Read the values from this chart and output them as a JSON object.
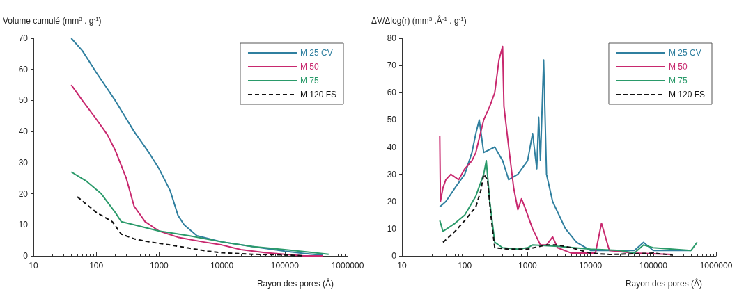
{
  "chart_data": [
    {
      "type": "line",
      "ylabel": "Volume cumulé (mm$^{3}$ . g$^{-1}$)",
      "xlabel": "Rayon des pores (Å)",
      "log": "x",
      "xlim": [
        10,
        1000000
      ],
      "xticks": [
        10,
        100,
        1000,
        10000,
        100000,
        1000000
      ],
      "ylim": [
        0,
        70
      ],
      "yticks": [
        0,
        10,
        20,
        30,
        40,
        50,
        60,
        70
      ],
      "grid": false,
      "legend": "top right",
      "marker": "none",
      "series": [
        {
          "name": "M 25 CV",
          "color": "#2f7f9f",
          "line_style": "solid",
          "x": [
            40,
            60,
            100,
            200,
            400,
            700,
            1000,
            1500,
            2000,
            2500,
            4000,
            10000,
            30000,
            100000,
            200000,
            400000
          ],
          "values": [
            70,
            66,
            59,
            50,
            40,
            33,
            28,
            21,
            13,
            10,
            6.5,
            4.5,
            3,
            1.5,
            0.8,
            0.2
          ]
        },
        {
          "name": "M 50",
          "color": "#c8286e",
          "line_style": "solid",
          "x": [
            40,
            60,
            100,
            150,
            200,
            300,
            400,
            600,
            1000,
            2000,
            5000,
            10000,
            20000,
            50000,
            100000,
            200000,
            400000
          ],
          "values": [
            55,
            50,
            44,
            39,
            34,
            25,
            16,
            11,
            8,
            6,
            4.5,
            3.5,
            2,
            1,
            0.5,
            0,
            0
          ]
        },
        {
          "name": "M 75",
          "color": "#2a9a6a",
          "line_style": "solid",
          "x": [
            40,
            70,
            120,
            200,
            250,
            400,
            1000,
            3000,
            10000,
            30000,
            100000,
            300000,
            500000
          ],
          "values": [
            27,
            24,
            20,
            14,
            11,
            10,
            8,
            6.5,
            4.5,
            3,
            2,
            1,
            0.5
          ]
        },
        {
          "name": "M 120 FS",
          "color": "#111111",
          "line_style": "dashed",
          "x": [
            50,
            100,
            180,
            250,
            400,
            700,
            1500,
            3000,
            6000,
            10000,
            30000,
            100000,
            200000
          ],
          "values": [
            19,
            14,
            11,
            7,
            5.5,
            4.5,
            3.5,
            2.5,
            1.5,
            1,
            0.5,
            0.3,
            0
          ]
        }
      ]
    },
    {
      "type": "line",
      "ylabel": "ΔV/Δlog(r) (mm$^{3}$ .Å$^{-1}$ . g$^{-1}$)",
      "xlabel": "Rayon des pores (Å)",
      "log": "x",
      "xlim": [
        10,
        1000000
      ],
      "xticks": [
        10,
        100,
        1000,
        10000,
        100000,
        1000000
      ],
      "ylim": [
        0,
        80
      ],
      "yticks": [
        0,
        10,
        20,
        30,
        40,
        50,
        60,
        70,
        80
      ],
      "grid": false,
      "legend": "top right",
      "marker": "none",
      "series": [
        {
          "name": "M 25 CV",
          "color": "#2f7f9f",
          "line_style": "solid",
          "x": [
            40,
            50,
            70,
            100,
            130,
            150,
            170,
            200,
            300,
            400,
            500,
            700,
            1000,
            1200,
            1400,
            1500,
            1600,
            1800,
            2000,
            2500,
            4000,
            6000,
            10000,
            50000,
            70000,
            100000,
            200000,
            400000
          ],
          "values": [
            18,
            20,
            25,
            30,
            38,
            45,
            50,
            38,
            40,
            35,
            28,
            30,
            35,
            45,
            32,
            51,
            35,
            72,
            30,
            20,
            10,
            5,
            2,
            2,
            5,
            2,
            2,
            2
          ]
        },
        {
          "name": "M 50",
          "color": "#c8286e",
          "line_style": "solid",
          "x": [
            40,
            41,
            45,
            50,
            60,
            80,
            100,
            130,
            150,
            200,
            250,
            300,
            350,
            400,
            420,
            500,
            600,
            700,
            800,
            900,
            1200,
            1600,
            2000,
            2500,
            3000,
            5000,
            10000,
            12000,
            15000,
            20000,
            50000,
            200000
          ],
          "values": [
            44,
            20,
            25,
            28,
            30,
            28,
            32,
            35,
            38,
            50,
            55,
            60,
            72,
            77,
            55,
            40,
            25,
            17,
            21,
            18,
            10,
            4,
            4,
            7,
            3,
            1,
            1,
            1,
            12,
            2,
            1,
            0.5
          ]
        },
        {
          "name": "M 75",
          "color": "#2a9a6a",
          "line_style": "solid",
          "x": [
            40,
            45,
            70,
            100,
            150,
            200,
            220,
            250,
            300,
            400,
            700,
            1000,
            1200,
            3000,
            10000,
            30000,
            50000,
            70000,
            100000,
            200000,
            400000,
            500000
          ],
          "values": [
            13,
            9,
            12,
            15,
            22,
            30,
            35,
            20,
            5,
            3,
            2.5,
            3,
            4,
            3.5,
            2.5,
            2,
            1,
            4,
            3,
            2.5,
            2,
            5
          ]
        },
        {
          "name": "M 120 FS",
          "color": "#111111",
          "line_style": "dashed",
          "x": [
            45,
            70,
            100,
            150,
            180,
            200,
            230,
            260,
            300,
            500,
            1000,
            2000,
            3000,
            5000,
            10000,
            20000,
            100000,
            200000
          ],
          "values": [
            5,
            9,
            13,
            18,
            24,
            30,
            28,
            15,
            3,
            2.5,
            2.5,
            4,
            4,
            3,
            1,
            0.5,
            1,
            0.3
          ]
        }
      ]
    }
  ]
}
